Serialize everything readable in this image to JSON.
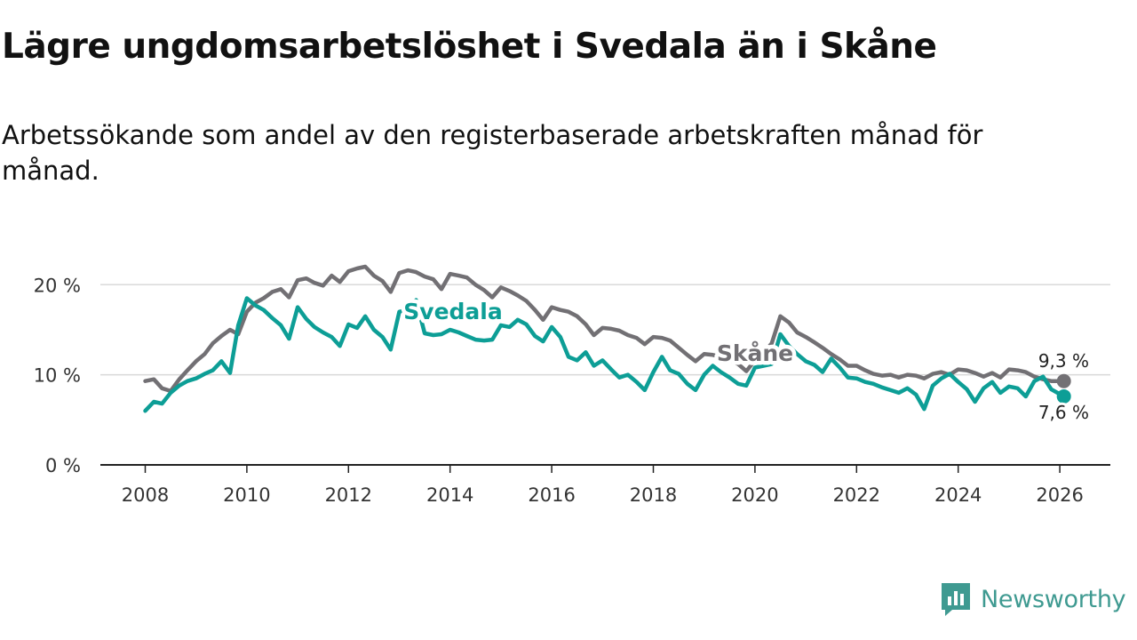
{
  "title": "Lägre ungdomsarbetslöshet i Svedala än i Skåne",
  "subtitle": "Arbetssökande som andel av den registerbaserade arbetskraften månad för månad.",
  "brand": {
    "name": "Newsworthy",
    "color": "#3f9a91"
  },
  "chart_data": {
    "type": "line",
    "title": "Lägre ungdomsarbetslöshet i Svedala än i Skåne",
    "xlabel": "",
    "ylabel": "",
    "xlim": [
      2007.5,
      2026.5
    ],
    "ylim": [
      0,
      22
    ],
    "grid": true,
    "y_ticks": [
      0,
      10,
      20
    ],
    "y_tick_labels": [
      "0 %",
      "10 %",
      "20 %"
    ],
    "x_ticks": [
      2008,
      2010,
      2012,
      2014,
      2016,
      2018,
      2020,
      2022,
      2024,
      2026
    ],
    "x_tick_labels": [
      "2008",
      "2010",
      "2012",
      "2014",
      "2016",
      "2018",
      "2020",
      "2022",
      "2024",
      "2026"
    ],
    "series": [
      {
        "name": "Skåne",
        "color": "#727074",
        "label_text": "Skåne",
        "end_label": "9,3 %",
        "end_value": 9.3,
        "points": [
          [
            2008.0,
            9.3
          ],
          [
            2008.17,
            9.5
          ],
          [
            2008.33,
            8.5
          ],
          [
            2008.5,
            8.2
          ],
          [
            2008.67,
            9.5
          ],
          [
            2008.83,
            10.5
          ],
          [
            2009.0,
            11.5
          ],
          [
            2009.17,
            12.3
          ],
          [
            2009.33,
            13.5
          ],
          [
            2009.5,
            14.3
          ],
          [
            2009.67,
            15.0
          ],
          [
            2009.83,
            14.5
          ],
          [
            2010.0,
            17.0
          ],
          [
            2010.17,
            18.0
          ],
          [
            2010.33,
            18.5
          ],
          [
            2010.5,
            19.2
          ],
          [
            2010.67,
            19.5
          ],
          [
            2010.83,
            18.6
          ],
          [
            2011.0,
            20.5
          ],
          [
            2011.17,
            20.7
          ],
          [
            2011.33,
            20.2
          ],
          [
            2011.5,
            19.9
          ],
          [
            2011.67,
            21.0
          ],
          [
            2011.83,
            20.3
          ],
          [
            2012.0,
            21.5
          ],
          [
            2012.17,
            21.8
          ],
          [
            2012.33,
            22.0
          ],
          [
            2012.5,
            21.0
          ],
          [
            2012.67,
            20.4
          ],
          [
            2012.83,
            19.2
          ],
          [
            2013.0,
            21.3
          ],
          [
            2013.17,
            21.6
          ],
          [
            2013.33,
            21.4
          ],
          [
            2013.5,
            20.9
          ],
          [
            2013.67,
            20.6
          ],
          [
            2013.83,
            19.5
          ],
          [
            2014.0,
            21.2
          ],
          [
            2014.17,
            21.0
          ],
          [
            2014.33,
            20.8
          ],
          [
            2014.5,
            20.0
          ],
          [
            2014.67,
            19.4
          ],
          [
            2014.83,
            18.6
          ],
          [
            2015.0,
            19.7
          ],
          [
            2015.17,
            19.3
          ],
          [
            2015.33,
            18.8
          ],
          [
            2015.5,
            18.2
          ],
          [
            2015.67,
            17.2
          ],
          [
            2015.83,
            16.1
          ],
          [
            2016.0,
            17.5
          ],
          [
            2016.17,
            17.2
          ],
          [
            2016.33,
            17.0
          ],
          [
            2016.5,
            16.5
          ],
          [
            2016.67,
            15.6
          ],
          [
            2016.83,
            14.4
          ],
          [
            2017.0,
            15.2
          ],
          [
            2017.17,
            15.1
          ],
          [
            2017.33,
            14.9
          ],
          [
            2017.5,
            14.4
          ],
          [
            2017.67,
            14.1
          ],
          [
            2017.83,
            13.4
          ],
          [
            2018.0,
            14.2
          ],
          [
            2018.17,
            14.1
          ],
          [
            2018.33,
            13.8
          ],
          [
            2018.5,
            13.0
          ],
          [
            2018.67,
            12.2
          ],
          [
            2018.83,
            11.5
          ],
          [
            2019.0,
            12.3
          ],
          [
            2019.17,
            12.2
          ],
          [
            2019.33,
            12.0
          ],
          [
            2019.5,
            11.6
          ],
          [
            2019.67,
            11.2
          ],
          [
            2019.83,
            10.4
          ],
          [
            2020.0,
            11.6
          ],
          [
            2020.17,
            12.4
          ],
          [
            2020.33,
            13.5
          ],
          [
            2020.5,
            16.5
          ],
          [
            2020.67,
            15.8
          ],
          [
            2020.83,
            14.7
          ],
          [
            2021.0,
            14.2
          ],
          [
            2021.17,
            13.6
          ],
          [
            2021.33,
            13.0
          ],
          [
            2021.5,
            12.3
          ],
          [
            2021.67,
            11.7
          ],
          [
            2021.83,
            11.0
          ],
          [
            2022.0,
            11.0
          ],
          [
            2022.17,
            10.5
          ],
          [
            2022.33,
            10.1
          ],
          [
            2022.5,
            9.9
          ],
          [
            2022.67,
            10.0
          ],
          [
            2022.83,
            9.7
          ],
          [
            2023.0,
            10.0
          ],
          [
            2023.17,
            9.9
          ],
          [
            2023.33,
            9.6
          ],
          [
            2023.5,
            10.1
          ],
          [
            2023.67,
            10.3
          ],
          [
            2023.83,
            10.0
          ],
          [
            2024.0,
            10.6
          ],
          [
            2024.17,
            10.5
          ],
          [
            2024.33,
            10.2
          ],
          [
            2024.5,
            9.8
          ],
          [
            2024.67,
            10.2
          ],
          [
            2024.83,
            9.7
          ],
          [
            2025.0,
            10.6
          ],
          [
            2025.17,
            10.5
          ],
          [
            2025.33,
            10.3
          ],
          [
            2025.5,
            9.8
          ],
          [
            2025.67,
            9.5
          ],
          [
            2025.83,
            9.3
          ],
          [
            2026.08,
            9.3
          ]
        ]
      },
      {
        "name": "Svedala",
        "color": "#0d9e96",
        "label_text": "Svedala",
        "end_label": "7,6 %",
        "end_value": 7.6,
        "points": [
          [
            2008.0,
            6.0
          ],
          [
            2008.17,
            7.0
          ],
          [
            2008.33,
            6.8
          ],
          [
            2008.5,
            8.0
          ],
          [
            2008.67,
            8.8
          ],
          [
            2008.83,
            9.3
          ],
          [
            2009.0,
            9.6
          ],
          [
            2009.17,
            10.1
          ],
          [
            2009.33,
            10.5
          ],
          [
            2009.5,
            11.5
          ],
          [
            2009.67,
            10.2
          ],
          [
            2009.83,
            15.5
          ],
          [
            2010.0,
            18.5
          ],
          [
            2010.17,
            17.7
          ],
          [
            2010.33,
            17.2
          ],
          [
            2010.5,
            16.3
          ],
          [
            2010.67,
            15.5
          ],
          [
            2010.83,
            14.0
          ],
          [
            2011.0,
            17.5
          ],
          [
            2011.17,
            16.2
          ],
          [
            2011.33,
            15.3
          ],
          [
            2011.5,
            14.7
          ],
          [
            2011.67,
            14.2
          ],
          [
            2011.83,
            13.2
          ],
          [
            2012.0,
            15.6
          ],
          [
            2012.17,
            15.2
          ],
          [
            2012.33,
            16.5
          ],
          [
            2012.5,
            15.0
          ],
          [
            2012.67,
            14.2
          ],
          [
            2012.83,
            12.8
          ],
          [
            2013.0,
            17.0
          ],
          [
            2013.17,
            17.2
          ],
          [
            2013.33,
            18.3
          ],
          [
            2013.5,
            14.6
          ],
          [
            2013.67,
            14.4
          ],
          [
            2013.83,
            14.5
          ],
          [
            2014.0,
            15.0
          ],
          [
            2014.17,
            14.7
          ],
          [
            2014.33,
            14.3
          ],
          [
            2014.5,
            13.9
          ],
          [
            2014.67,
            13.8
          ],
          [
            2014.83,
            13.9
          ],
          [
            2015.0,
            15.5
          ],
          [
            2015.17,
            15.3
          ],
          [
            2015.33,
            16.1
          ],
          [
            2015.5,
            15.6
          ],
          [
            2015.67,
            14.3
          ],
          [
            2015.83,
            13.7
          ],
          [
            2016.0,
            15.3
          ],
          [
            2016.17,
            14.2
          ],
          [
            2016.33,
            12.0
          ],
          [
            2016.5,
            11.6
          ],
          [
            2016.67,
            12.5
          ],
          [
            2016.83,
            11.0
          ],
          [
            2017.0,
            11.6
          ],
          [
            2017.17,
            10.6
          ],
          [
            2017.33,
            9.7
          ],
          [
            2017.5,
            10.0
          ],
          [
            2017.67,
            9.2
          ],
          [
            2017.83,
            8.3
          ],
          [
            2018.0,
            10.3
          ],
          [
            2018.17,
            12.0
          ],
          [
            2018.33,
            10.5
          ],
          [
            2018.5,
            10.1
          ],
          [
            2018.67,
            9.0
          ],
          [
            2018.83,
            8.3
          ],
          [
            2019.0,
            10.0
          ],
          [
            2019.17,
            11.0
          ],
          [
            2019.33,
            10.3
          ],
          [
            2019.5,
            9.7
          ],
          [
            2019.67,
            9.0
          ],
          [
            2019.83,
            8.8
          ],
          [
            2020.0,
            10.8
          ],
          [
            2020.17,
            11.0
          ],
          [
            2020.33,
            11.2
          ],
          [
            2020.5,
            14.5
          ],
          [
            2020.67,
            13.2
          ],
          [
            2020.83,
            12.3
          ],
          [
            2021.0,
            11.5
          ],
          [
            2021.17,
            11.1
          ],
          [
            2021.33,
            10.3
          ],
          [
            2021.5,
            11.8
          ],
          [
            2021.67,
            10.8
          ],
          [
            2021.83,
            9.7
          ],
          [
            2022.0,
            9.6
          ],
          [
            2022.17,
            9.2
          ],
          [
            2022.33,
            9.0
          ],
          [
            2022.5,
            8.6
          ],
          [
            2022.67,
            8.3
          ],
          [
            2022.83,
            8.0
          ],
          [
            2023.0,
            8.5
          ],
          [
            2023.17,
            7.8
          ],
          [
            2023.33,
            6.2
          ],
          [
            2023.5,
            8.8
          ],
          [
            2023.67,
            9.6
          ],
          [
            2023.83,
            10.1
          ],
          [
            2024.0,
            9.2
          ],
          [
            2024.17,
            8.4
          ],
          [
            2024.33,
            7.0
          ],
          [
            2024.5,
            8.5
          ],
          [
            2024.67,
            9.2
          ],
          [
            2024.83,
            8.0
          ],
          [
            2025.0,
            8.7
          ],
          [
            2025.17,
            8.5
          ],
          [
            2025.33,
            7.6
          ],
          [
            2025.5,
            9.3
          ],
          [
            2025.67,
            9.8
          ],
          [
            2025.83,
            8.4
          ],
          [
            2026.08,
            7.6
          ]
        ]
      }
    ]
  }
}
